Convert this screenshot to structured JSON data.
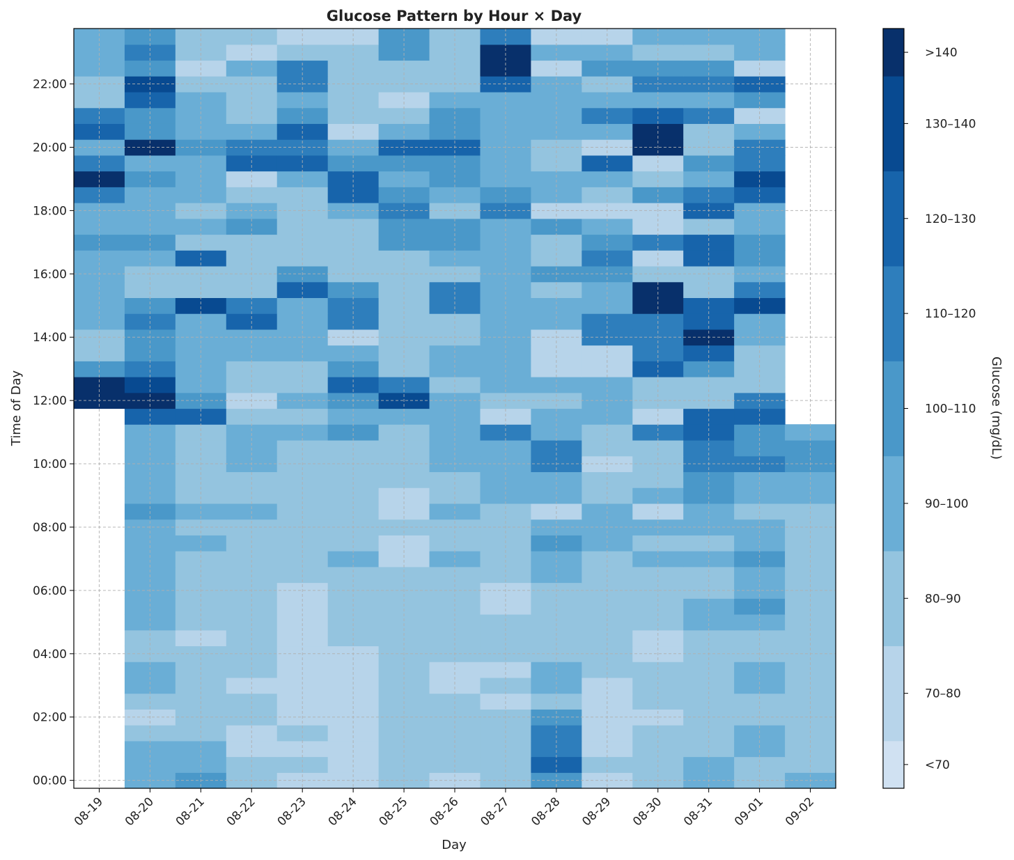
{
  "chart_data": {
    "type": "heatmap",
    "title": "Glucose Pattern by Hour × Day",
    "xlabel": "Day",
    "ylabel": "Time of Day",
    "colorbar_label": "Glucose (mg/dL)",
    "days": [
      "08-19",
      "08-20",
      "08-21",
      "08-22",
      "08-23",
      "08-24",
      "08-25",
      "08-26",
      "08-27",
      "08-28",
      "08-29",
      "08-30",
      "08-31",
      "09-01",
      "09-02"
    ],
    "y_ticks": [
      "00:00",
      "02:00",
      "04:00",
      "06:00",
      "08:00",
      "10:00",
      "12:00",
      "14:00",
      "16:00",
      "18:00",
      "20:00",
      "22:00"
    ],
    "y_range_hours": [
      -0.25,
      23.75
    ],
    "bin_hours": 0.5,
    "bins": [
      {
        "label": "<70",
        "min": 65,
        "max": 70,
        "color": "#d0e1f2"
      },
      {
        "label": "70–80",
        "min": 70,
        "max": 80,
        "color": "#b7d4ea"
      },
      {
        "label": "80–90",
        "min": 80,
        "max": 90,
        "color": "#94c4df"
      },
      {
        "label": "90–100",
        "min": 90,
        "max": 100,
        "color": "#6aaed6"
      },
      {
        "label": "100–110",
        "min": 100,
        "max": 110,
        "color": "#4a98c9"
      },
      {
        "label": "110–120",
        "min": 110,
        "max": 120,
        "color": "#2e7ebc"
      },
      {
        "label": "120–130",
        "min": 120,
        "max": 130,
        "color": "#1764ab"
      },
      {
        "label": "130–140",
        "min": 130,
        "max": 140,
        "color": "#084a91"
      },
      {
        "label": ">140",
        "min": 140,
        "max": 145,
        "color": "#08306b"
      }
    ],
    "colorbar_ticks": [
      "<70",
      "70–80",
      "80–90",
      "90–100",
      "100–110",
      "110–120",
      "120–130",
      "130–140",
      ">140"
    ],
    "grid": true,
    "readings_mg_dl": [
      [
        null,
        95,
        105,
        85,
        75,
        78,
        85,
        70,
        85,
        108,
        72,
        85,
        95,
        85,
        95
      ],
      [
        null,
        95,
        95,
        85,
        85,
        78,
        85,
        85,
        85,
        125,
        85,
        85,
        95,
        85,
        85
      ],
      [
        null,
        95,
        95,
        78,
        78,
        70,
        85,
        85,
        85,
        115,
        78,
        85,
        85,
        95,
        85
      ],
      [
        null,
        85,
        85,
        78,
        85,
        70,
        85,
        85,
        85,
        115,
        70,
        85,
        85,
        95,
        85
      ],
      [
        null,
        75,
        85,
        85,
        78,
        70,
        85,
        85,
        85,
        105,
        78,
        78,
        85,
        85,
        85
      ],
      [
        null,
        85,
        85,
        85,
        78,
        70,
        85,
        85,
        78,
        85,
        78,
        85,
        85,
        85,
        85
      ],
      [
        null,
        95,
        85,
        78,
        78,
        78,
        85,
        78,
        85,
        95,
        78,
        85,
        85,
        95,
        85
      ],
      [
        null,
        95,
        85,
        85,
        78,
        78,
        85,
        78,
        78,
        95,
        85,
        85,
        85,
        95,
        85
      ],
      [
        null,
        85,
        85,
        85,
        72,
        78,
        85,
        85,
        85,
        85,
        85,
        78,
        85,
        85,
        85
      ],
      [
        null,
        85,
        72,
        85,
        72,
        85,
        85,
        85,
        85,
        85,
        85,
        78,
        85,
        85,
        85
      ],
      [
        null,
        95,
        85,
        85,
        78,
        85,
        85,
        85,
        85,
        85,
        85,
        85,
        95,
        95,
        85
      ],
      [
        null,
        95,
        85,
        85,
        78,
        85,
        85,
        85,
        78,
        85,
        85,
        85,
        95,
        105,
        85
      ],
      [
        null,
        95,
        85,
        85,
        78,
        85,
        85,
        85,
        78,
        85,
        85,
        85,
        85,
        95,
        85
      ],
      [
        null,
        95,
        85,
        85,
        85,
        85,
        85,
        85,
        85,
        95,
        85,
        85,
        85,
        95,
        85
      ],
      [
        null,
        95,
        85,
        85,
        85,
        95,
        78,
        95,
        85,
        95,
        85,
        95,
        95,
        108,
        85
      ],
      [
        null,
        95,
        95,
        85,
        85,
        85,
        78,
        85,
        85,
        105,
        95,
        85,
        85,
        95,
        85
      ],
      [
        null,
        95,
        85,
        85,
        85,
        85,
        85,
        85,
        85,
        95,
        95,
        95,
        95,
        95,
        85
      ],
      [
        null,
        105,
        95,
        95,
        85,
        85,
        78,
        95,
        85,
        78,
        95,
        78,
        95,
        85,
        85
      ],
      [
        null,
        95,
        85,
        85,
        85,
        85,
        78,
        85,
        95,
        95,
        85,
        95,
        105,
        95,
        95
      ],
      [
        null,
        95,
        85,
        85,
        85,
        85,
        85,
        85,
        95,
        95,
        85,
        85,
        105,
        95,
        95
      ],
      [
        null,
        95,
        85,
        95,
        85,
        85,
        85,
        95,
        95,
        115,
        78,
        85,
        115,
        118,
        105
      ],
      [
        null,
        95,
        85,
        95,
        85,
        85,
        85,
        95,
        95,
        115,
        85,
        85,
        115,
        105,
        105
      ],
      [
        null,
        95,
        85,
        95,
        95,
        105,
        85,
        95,
        115,
        95,
        85,
        115,
        125,
        105,
        95
      ],
      [
        null,
        125,
        125,
        85,
        85,
        95,
        95,
        95,
        78,
        95,
        95,
        75,
        125,
        125,
        null
      ],
      [
        145,
        145,
        105,
        78,
        95,
        105,
        135,
        95,
        85,
        85,
        95,
        85,
        85,
        115,
        null
      ],
      [
        145,
        135,
        95,
        85,
        85,
        125,
        115,
        85,
        95,
        95,
        95,
        85,
        85,
        85,
        null
      ],
      [
        105,
        115,
        95,
        85,
        85,
        105,
        85,
        95,
        95,
        78,
        72,
        125,
        105,
        85,
        null
      ],
      [
        85,
        105,
        95,
        95,
        95,
        95,
        85,
        95,
        95,
        75,
        78,
        115,
        125,
        85,
        null
      ],
      [
        85,
        105,
        95,
        95,
        95,
        78,
        85,
        85,
        95,
        72,
        110,
        110,
        145,
        95,
        null
      ],
      [
        95,
        110,
        95,
        125,
        95,
        110,
        85,
        85,
        95,
        95,
        110,
        110,
        125,
        95,
        null
      ],
      [
        95,
        105,
        135,
        115,
        95,
        110,
        85,
        115,
        95,
        95,
        95,
        145,
        125,
        130,
        null
      ],
      [
        95,
        85,
        85,
        85,
        125,
        105,
        85,
        115,
        95,
        85,
        95,
        140,
        85,
        115,
        null
      ],
      [
        95,
        85,
        85,
        85,
        105,
        85,
        85,
        85,
        95,
        105,
        105,
        85,
        85,
        95,
        null
      ],
      [
        95,
        95,
        125,
        85,
        85,
        85,
        85,
        95,
        95,
        85,
        115,
        78,
        125,
        105,
        null
      ],
      [
        105,
        105,
        85,
        85,
        85,
        85,
        105,
        105,
        95,
        85,
        105,
        115,
        125,
        105,
        null
      ],
      [
        95,
        95,
        95,
        105,
        85,
        85,
        105,
        105,
        95,
        105,
        95,
        78,
        85,
        95,
        null
      ],
      [
        95,
        95,
        85,
        95,
        85,
        95,
        115,
        85,
        115,
        78,
        78,
        78,
        125,
        95,
        null
      ],
      [
        115,
        95,
        95,
        85,
        85,
        125,
        105,
        95,
        105,
        95,
        85,
        105,
        115,
        125,
        null
      ],
      [
        145,
        105,
        95,
        78,
        95,
        125,
        95,
        105,
        95,
        95,
        95,
        85,
        95,
        130,
        null
      ],
      [
        115,
        95,
        95,
        125,
        125,
        105,
        105,
        105,
        95,
        85,
        125,
        78,
        105,
        115,
        null
      ],
      [
        95,
        145,
        105,
        115,
        115,
        95,
        125,
        125,
        95,
        85,
        75,
        145,
        85,
        115,
        null
      ],
      [
        125,
        105,
        95,
        95,
        125,
        75,
        95,
        105,
        95,
        95,
        95,
        145,
        85,
        95,
        null
      ],
      [
        115,
        105,
        95,
        85,
        105,
        85,
        85,
        105,
        95,
        95,
        115,
        125,
        115,
        75,
        null
      ],
      [
        85,
        125,
        95,
        85,
        95,
        85,
        78,
        95,
        95,
        95,
        95,
        95,
        95,
        105,
        null
      ],
      [
        85,
        135,
        85,
        85,
        115,
        85,
        85,
        85,
        125,
        95,
        85,
        115,
        115,
        125,
        null
      ],
      [
        95,
        105,
        72,
        95,
        115,
        85,
        85,
        85,
        145,
        78,
        105,
        105,
        105,
        78,
        null
      ],
      [
        95,
        115,
        85,
        78,
        85,
        85,
        105,
        85,
        145,
        95,
        95,
        85,
        85,
        95,
        null
      ],
      [
        95,
        105,
        85,
        85,
        72,
        78,
        105,
        85,
        115,
        78,
        78,
        95,
        95,
        95,
        null
      ]
    ]
  }
}
